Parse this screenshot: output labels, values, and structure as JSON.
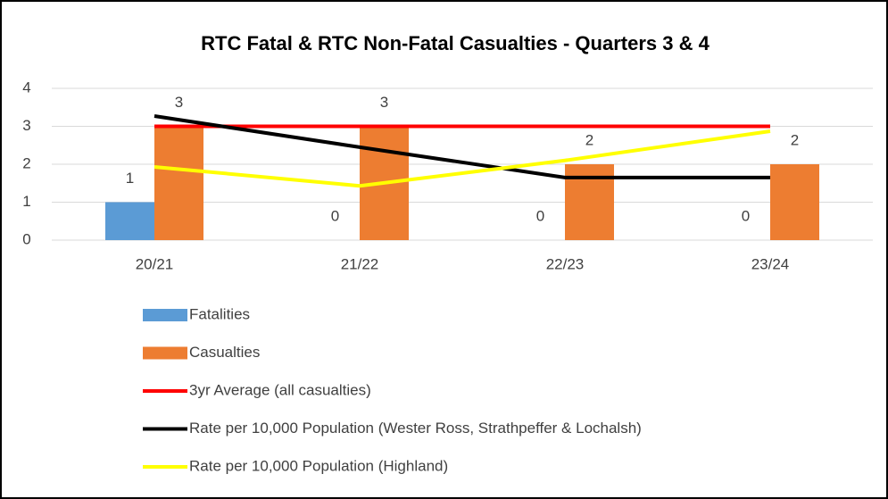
{
  "chart_data": {
    "type": "combo",
    "title": "RTC Fatal & RTC Non-Fatal Casualties - Quarters 3 & 4",
    "categories": [
      "20/21",
      "21/22",
      "22/23",
      "23/24"
    ],
    "series": [
      {
        "name": "Fatalities",
        "type": "bar",
        "color": "#5b9bd5",
        "values": [
          1,
          0,
          0,
          0
        ]
      },
      {
        "name": "Casualties",
        "type": "bar",
        "color": "#ed7d31",
        "values": [
          3,
          3,
          2,
          2
        ]
      },
      {
        "name": "3yr Average (all casualties)",
        "type": "line",
        "color": "#ff0000",
        "values": [
          3,
          3,
          3,
          3
        ]
      },
      {
        "name": "Rate per 10,000 Population (Wester Ross, Strathpeffer & Lochalsh)",
        "type": "line",
        "color": "#000000",
        "values": [
          3.27,
          2.45,
          1.65,
          1.65
        ]
      },
      {
        "name": "Rate per 10,000 Population (Highland)",
        "type": "line",
        "color": "#ffff00",
        "values": [
          1.93,
          1.43,
          2.1,
          2.87
        ]
      }
    ],
    "ylim": [
      0,
      4
    ],
    "yticks": [
      0,
      1,
      2,
      3,
      4
    ],
    "grid": true
  }
}
